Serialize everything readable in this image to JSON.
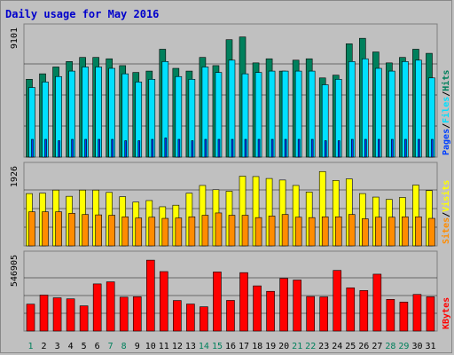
{
  "chart_data": {
    "type": "bar",
    "title": "Daily usage for May 2016",
    "categories": [
      "1",
      "2",
      "3",
      "4",
      "5",
      "6",
      "7",
      "8",
      "9",
      "10",
      "11",
      "12",
      "13",
      "14",
      "15",
      "16",
      "17",
      "18",
      "19",
      "20",
      "21",
      "22",
      "23",
      "24",
      "25",
      "26",
      "27",
      "28",
      "29",
      "30",
      "31"
    ],
    "weekend_days": [
      "1",
      "7",
      "8",
      "14",
      "15",
      "21",
      "22",
      "28",
      "29"
    ],
    "colors": {
      "title": "#0000cc",
      "background": "#c0c0c0",
      "hits": "#00805c",
      "files": "#00e0ff",
      "pages": "#0040ff",
      "visits": "#ffff00",
      "sites": "#ff8c00",
      "kbytes": "#ff0000",
      "weekday_label": "#000000",
      "weekend_label": "#00805c"
    },
    "panels": [
      {
        "name": "hits-files-pages",
        "ymax_label": "9101",
        "ylim": [
          0,
          9101
        ],
        "legend": [
          "Pages",
          "/",
          "Files",
          "/",
          "Hits"
        ],
        "series": [
          {
            "name": "Hits",
            "color_key": "hits",
            "values": [
              5700,
              6100,
              6600,
              7000,
              7300,
              7300,
              7200,
              6700,
              6200,
              6300,
              7900,
              6500,
              6300,
              7300,
              6700,
              8600,
              8800,
              6900,
              7200,
              6300,
              7100,
              7200,
              5800,
              6000,
              8300,
              8700,
              7700,
              6900,
              7300,
              7900,
              7600
            ]
          },
          {
            "name": "Files",
            "color_key": "files",
            "values": [
              5100,
              5500,
              5900,
              6300,
              6600,
              6600,
              6500,
              6100,
              5500,
              5700,
              7000,
              5900,
              5700,
              6600,
              6200,
              7100,
              6100,
              6200,
              6300,
              6300,
              6300,
              6300,
              5300,
              5700,
              7000,
              7200,
              6500,
              6300,
              7000,
              7100,
              5800
            ]
          },
          {
            "name": "Pages",
            "color_key": "pages",
            "values": [
              1300,
              1300,
              1200,
              1300,
              1300,
              1300,
              1300,
              1200,
              1200,
              1300,
              1400,
              1300,
              1200,
              1300,
              1300,
              1300,
              1300,
              1300,
              1300,
              1300,
              1300,
              1300,
              1200,
              1200,
              1300,
              1300,
              1300,
              1300,
              1300,
              1300,
              1300
            ]
          }
        ]
      },
      {
        "name": "visits-sites",
        "ymax_label": "1926",
        "ylim": [
          0,
          1926
        ],
        "legend": [
          "Sites",
          "/",
          "Visits"
        ],
        "series": [
          {
            "name": "Visits",
            "color_key": "visits",
            "values": [
              1350,
              1360,
              1440,
              1280,
              1440,
              1440,
              1380,
              1270,
              1130,
              1170,
              1010,
              1050,
              1360,
              1560,
              1450,
              1410,
              1800,
              1790,
              1740,
              1700,
              1560,
              1390,
              1920,
              1690,
              1730,
              1350,
              1260,
              1200,
              1250,
              1570,
              1430
            ]
          },
          {
            "name": "Sites",
            "color_key": "sites",
            "values": [
              880,
              880,
              880,
              840,
              810,
              800,
              790,
              750,
              720,
              740,
              710,
              720,
              750,
              790,
              850,
              790,
              790,
              730,
              770,
              810,
              740,
              730,
              750,
              750,
              810,
              700,
              740,
              740,
              750,
              750,
              710
            ]
          }
        ]
      },
      {
        "name": "kbytes",
        "ymax_label": "546905",
        "ylim": [
          0,
          546905
        ],
        "legend": [
          "KBytes"
        ],
        "series": [
          {
            "name": "KBytes",
            "color_key": "kbytes",
            "values": [
              207000,
              277000,
              256000,
              248000,
              194000,
              363000,
              379000,
              261000,
              264000,
              546000,
              458000,
              235000,
              208000,
              187000,
              455000,
              236000,
              450000,
              348000,
              306000,
              406000,
              393000,
              266000,
              263000,
              467000,
              333000,
              312000,
              438000,
              244000,
              223000,
              282000,
              264000
            ]
          }
        ]
      }
    ]
  }
}
